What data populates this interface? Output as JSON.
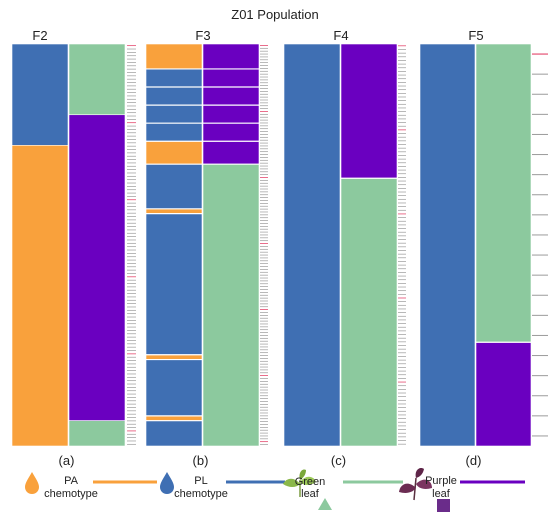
{
  "title": "Z01 Population",
  "panels": [
    {
      "id": "F2",
      "letter": "(a)",
      "left": [
        {
          "trait": "PL",
          "share": 0.252
        },
        {
          "trait": "PA",
          "share": 0.748
        }
      ],
      "right": [
        {
          "trait": "Green",
          "share": 0.176
        },
        {
          "trait": "Purple",
          "share": 0.761
        },
        {
          "trait": "Green",
          "share": 0.063
        }
      ],
      "right_lines": 120,
      "left_bounds": [],
      "right_bounds": []
    },
    {
      "id": "F3",
      "letter": "(b)",
      "left": [
        {
          "trait": "PA",
          "share": 0.062
        },
        {
          "trait": "PL",
          "share": 0.045
        },
        {
          "trait": "PL",
          "share": 0.045
        },
        {
          "trait": "PL",
          "share": 0.045
        },
        {
          "trait": "PL",
          "share": 0.045
        },
        {
          "trait": "PA",
          "share": 0.057
        },
        {
          "trait": "PL",
          "share": 0.111
        },
        {
          "trait": "PA",
          "share": 0.012
        },
        {
          "trait": "PL",
          "share": 0.351
        },
        {
          "trait": "PA",
          "share": 0.012
        },
        {
          "trait": "PL",
          "share": 0.14
        },
        {
          "trait": "PA",
          "share": 0.012
        },
        {
          "trait": "PL",
          "share": 0.063
        }
      ],
      "right": [
        {
          "trait": "Purple",
          "share": 0.062
        },
        {
          "trait": "Purple",
          "share": 0.045
        },
        {
          "trait": "Purple",
          "share": 0.045
        },
        {
          "trait": "Purple",
          "share": 0.045
        },
        {
          "trait": "Purple",
          "share": 0.045
        },
        {
          "trait": "Purple",
          "share": 0.057
        },
        {
          "trait": "Green",
          "share": 0.701
        }
      ],
      "right_lines": 140,
      "left_bounds": [
        0.062,
        0.107,
        0.152,
        0.197,
        0.242,
        0.299,
        0.41,
        0.422,
        0.773,
        0.785,
        0.925,
        0.937
      ],
      "right_bounds": [
        0.062,
        0.107,
        0.152,
        0.197,
        0.242,
        0.299
      ]
    },
    {
      "id": "F4",
      "letter": "(c)",
      "left": [
        {
          "trait": "PL",
          "share": 1.0
        }
      ],
      "right": [
        {
          "trait": "Purple",
          "share": 0.334
        },
        {
          "trait": "Green",
          "share": 0.666
        }
      ],
      "right_lines": 110,
      "left_bounds": [],
      "right_bounds": [
        0.334
      ]
    },
    {
      "id": "F5",
      "letter": "(d)",
      "left": [
        {
          "trait": "PL",
          "share": 1.0
        }
      ],
      "right": [
        {
          "trait": "Green",
          "share": 0.742
        },
        {
          "trait": "Purple",
          "share": 0.258
        }
      ],
      "right_lines": 20,
      "left_bounds": [],
      "right_bounds": [
        0.742
      ]
    }
  ],
  "colors": {
    "PA": "#f9a13c",
    "PL": "#3f6fb3",
    "Green": "#8cc99e",
    "Purple": "#6a00c0",
    "red_tick": "#e0305a",
    "border": "#ffffff"
  },
  "legend": {
    "pa_label": "PA",
    "pa_sub": "chemotype",
    "pl_label": "PL",
    "pl_sub": "chemotype",
    "green_label": "Green",
    "green_sub": "leaf",
    "purple_label": "Purple",
    "purple_sub": "leaf"
  },
  "icons": {
    "pa": "drop-icon",
    "pl": "drop-icon",
    "green": "green-leaf-plant-icon",
    "purple": "purple-leaf-plant-icon"
  }
}
